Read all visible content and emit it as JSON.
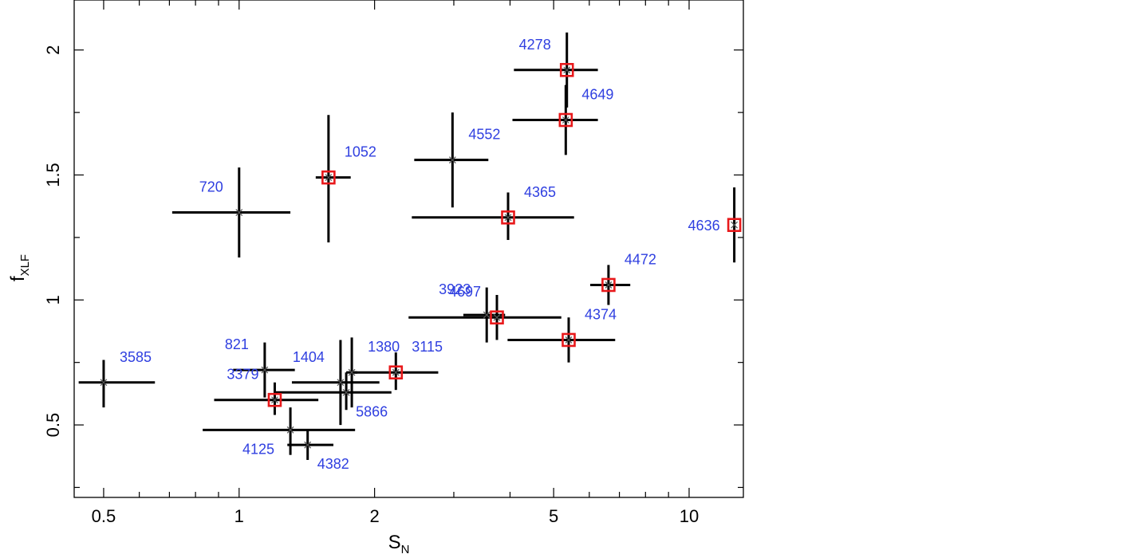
{
  "chart_data": {
    "type": "scatter",
    "xscale": "log",
    "xlim": [
      0.43,
      13.2
    ],
    "ylim": [
      0.21,
      2.2
    ],
    "xlabel": "S",
    "xlabel_sub": "N",
    "ylabel": "f",
    "ylabel_sub": "XLF",
    "xticks": [
      {
        "value": 0.5,
        "label": "0.5"
      },
      {
        "value": 1,
        "label": "1"
      },
      {
        "value": 2,
        "label": "2"
      },
      {
        "value": 5,
        "label": "5"
      },
      {
        "value": 10,
        "label": "10"
      }
    ],
    "yticks": [
      {
        "value": 0.5,
        "label": "0.5"
      },
      {
        "value": 1,
        "label": "1"
      },
      {
        "value": 1.5,
        "label": "1.5"
      },
      {
        "value": 2,
        "label": "2"
      }
    ],
    "marker_color": "#e8191b",
    "label_color": "#2f3fe0",
    "points": [
      {
        "label": "4278",
        "x": 5.35,
        "y": 1.92,
        "xlo": 4.08,
        "xhi": 6.27,
        "ylo": 1.77,
        "yhi": 2.07,
        "highlight": true,
        "label_pos": "upper-left"
      },
      {
        "label": "4649",
        "x": 5.32,
        "y": 1.72,
        "xlo": 4.05,
        "xhi": 6.27,
        "ylo": 1.58,
        "yhi": 1.86,
        "highlight": true,
        "label_pos": "upper-right"
      },
      {
        "label": "4552",
        "x": 2.98,
        "y": 1.56,
        "xlo": 2.45,
        "xhi": 3.58,
        "ylo": 1.37,
        "yhi": 1.75,
        "highlight": false,
        "label_pos": "upper-right"
      },
      {
        "label": "1052",
        "x": 1.58,
        "y": 1.49,
        "xlo": 1.48,
        "xhi": 1.77,
        "ylo": 1.23,
        "yhi": 1.74,
        "highlight": true,
        "label_pos": "upper-right"
      },
      {
        "label": "720",
        "x": 1.0,
        "y": 1.35,
        "xlo": 0.71,
        "xhi": 1.3,
        "ylo": 1.17,
        "yhi": 1.53,
        "highlight": false,
        "label_pos": "upper-left"
      },
      {
        "label": "4365",
        "x": 3.96,
        "y": 1.33,
        "xlo": 2.42,
        "xhi": 5.55,
        "ylo": 1.24,
        "yhi": 1.43,
        "highlight": true,
        "label_pos": "upper-right"
      },
      {
        "label": "4636",
        "x": 12.6,
        "y": 1.3,
        "xlo": 12.6,
        "xhi": 12.6,
        "ylo": 1.15,
        "yhi": 1.45,
        "highlight": true,
        "label_pos": "left"
      },
      {
        "label": "4472",
        "x": 6.62,
        "y": 1.06,
        "xlo": 6.03,
        "xhi": 7.4,
        "ylo": 0.98,
        "yhi": 1.14,
        "highlight": true,
        "label_pos": "upper-right"
      },
      {
        "label": "3923",
        "x": 3.55,
        "y": 0.94,
        "xlo": 3.15,
        "xhi": 3.9,
        "ylo": 0.83,
        "yhi": 1.05,
        "highlight": false,
        "label_pos": "upper-left"
      },
      {
        "label": "4697",
        "x": 3.74,
        "y": 0.93,
        "xlo": 2.38,
        "xhi": 5.2,
        "ylo": 0.84,
        "yhi": 1.02,
        "highlight": true,
        "label_pos": "upper-left"
      },
      {
        "label": "4374",
        "x": 5.4,
        "y": 0.84,
        "xlo": 3.95,
        "xhi": 6.85,
        "ylo": 0.75,
        "yhi": 0.93,
        "highlight": true,
        "label_pos": "upper-right"
      },
      {
        "label": "3115",
        "x": 2.23,
        "y": 0.71,
        "xlo": 1.77,
        "xhi": 2.77,
        "ylo": 0.64,
        "yhi": 0.79,
        "highlight": true,
        "label_pos": "upper-right"
      },
      {
        "label": "1380",
        "x": 1.78,
        "y": 0.71,
        "xlo": 1.73,
        "xhi": 1.83,
        "ylo": 0.57,
        "yhi": 0.85,
        "highlight": false,
        "label_pos": "upper-right"
      },
      {
        "label": "821",
        "x": 1.14,
        "y": 0.72,
        "xlo": 0.97,
        "xhi": 1.33,
        "ylo": 0.61,
        "yhi": 0.83,
        "highlight": false,
        "label_pos": "upper-left"
      },
      {
        "label": "1404",
        "x": 1.68,
        "y": 0.67,
        "xlo": 1.31,
        "xhi": 2.05,
        "ylo": 0.5,
        "yhi": 0.84,
        "highlight": false,
        "label_pos": "upper-left"
      },
      {
        "label": "5866",
        "x": 1.73,
        "y": 0.63,
        "xlo": 1.2,
        "xhi": 2.18,
        "ylo": 0.56,
        "yhi": 0.71,
        "highlight": false,
        "label_pos": "lower-right"
      },
      {
        "label": "3585",
        "x": 0.5,
        "y": 0.67,
        "xlo": 0.44,
        "xhi": 0.65,
        "ylo": 0.57,
        "yhi": 0.76,
        "highlight": false,
        "label_pos": "upper-right"
      },
      {
        "label": "3379",
        "x": 1.2,
        "y": 0.6,
        "xlo": 0.88,
        "xhi": 1.5,
        "ylo": 0.54,
        "yhi": 0.67,
        "highlight": true,
        "label_pos": "upper-left"
      },
      {
        "label": "4125",
        "x": 1.3,
        "y": 0.48,
        "xlo": 0.83,
        "xhi": 1.81,
        "ylo": 0.38,
        "yhi": 0.57,
        "highlight": false,
        "label_pos": "lower-left"
      },
      {
        "label": "4382",
        "x": 1.42,
        "y": 0.42,
        "xlo": 1.28,
        "xhi": 1.62,
        "ylo": 0.36,
        "yhi": 0.48,
        "highlight": false,
        "label_pos": "lower-right"
      }
    ]
  }
}
